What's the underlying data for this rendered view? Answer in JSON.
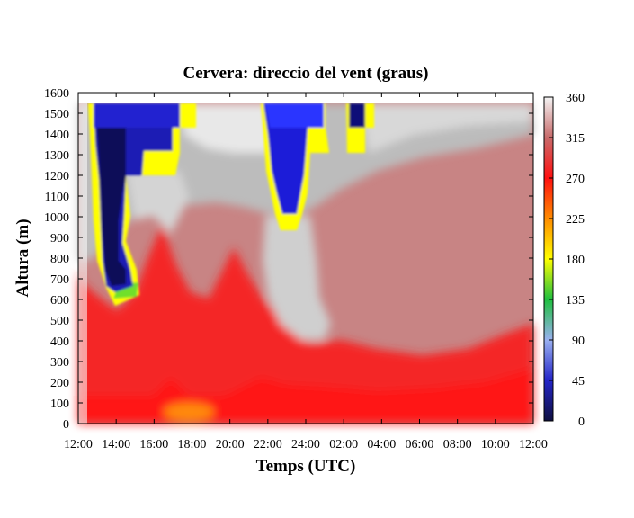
{
  "chart_data": {
    "type": "heatmap",
    "title": "Cervera: direccio del vent (graus)",
    "xlabel": "Temps (UTC)",
    "ylabel": "Altura (m)",
    "x_ticks": [
      "12:00",
      "14:00",
      "16:00",
      "18:00",
      "20:00",
      "22:00",
      "24:00",
      "02:00",
      "04:00",
      "06:00",
      "08:00",
      "10:00",
      "12:00"
    ],
    "y_ticks": [
      "0",
      "100",
      "200",
      "300",
      "400",
      "500",
      "600",
      "700",
      "800",
      "900",
      "1000",
      "1100",
      "1200",
      "1300",
      "1400",
      "1500",
      "1600"
    ],
    "ylim": [
      0,
      1600
    ],
    "colorbar": {
      "ticks": [
        "0",
        "45",
        "90",
        "135",
        "180",
        "225",
        "270",
        "315",
        "360"
      ],
      "range": [
        0,
        360
      ]
    },
    "grid": false
  }
}
